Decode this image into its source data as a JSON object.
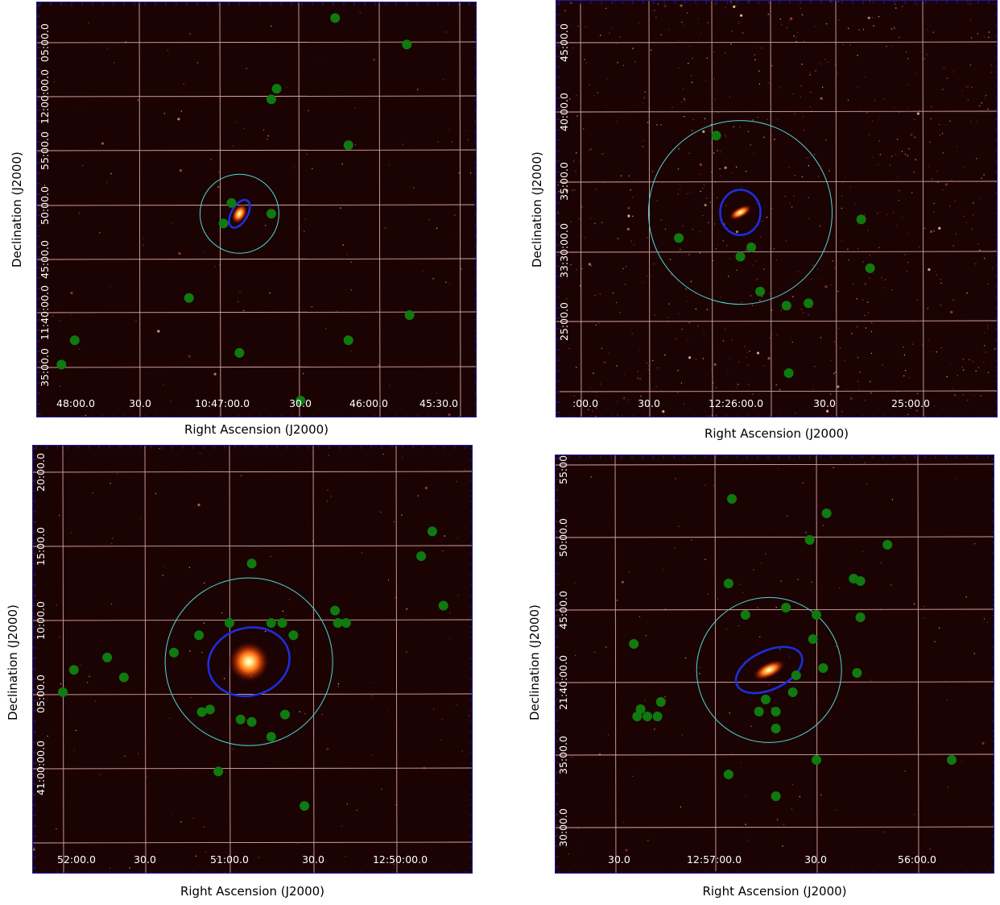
{
  "chart_data": [
    {
      "type": "scatter",
      "title": "",
      "xlabel": "Right Ascension (J2000)",
      "ylabel": "Declination (J2000)",
      "x_ticks": [
        "48:00.0",
        "30.0",
        "10:47:00.0",
        "30.0",
        "46:00.0",
        "45:30.0"
      ],
      "y_ticks": [
        "35:00.0",
        "11:40:00.0",
        "45:00.0",
        "50:00.0",
        "55:00.0",
        "12:00:00.0",
        "05:00.0"
      ],
      "grid": true,
      "colors": {
        "background": "#1c0303",
        "grid": "#d9a3a3",
        "points": "#0f7a0f",
        "ellipse": "#1a2fe0",
        "circle": "#4fd6d6",
        "frame": "#1a1aa0"
      },
      "center_ra": "10:46:52",
      "center_dec": "11:49:14",
      "points": [
        {
          "ra": "10:46:16",
          "dec": "12:07:23"
        },
        {
          "ra": "10:45:49",
          "dec": "12:04:56"
        },
        {
          "ra": "10:46:38",
          "dec": "12:00:50"
        },
        {
          "ra": "10:46:40",
          "dec": "11:59:51"
        },
        {
          "ra": "10:46:11",
          "dec": "11:55:36"
        },
        {
          "ra": "10:46:55",
          "dec": "11:50:14"
        },
        {
          "ra": "10:46:58",
          "dec": "11:48:20"
        },
        {
          "ra": "10:46:40",
          "dec": "11:49:14"
        },
        {
          "ra": "10:47:11",
          "dec": "11:41:25"
        },
        {
          "ra": "10:46:52",
          "dec": "11:36:20"
        },
        {
          "ra": "10:46:29",
          "dec": "11:31:55"
        },
        {
          "ra": "10:46:11",
          "dec": "11:37:30"
        },
        {
          "ra": "10:45:48",
          "dec": "11:39:50"
        },
        {
          "ra": "10:47:54",
          "dec": "11:37:30"
        },
        {
          "ra": "10:47:59",
          "dec": "11:35:15"
        }
      ]
    },
    {
      "type": "scatter",
      "title": "",
      "xlabel": "Right Ascension (J2000)",
      "ylabel": "Declination (J2000)",
      "x_ticks": [
        ":00.0",
        "30.0",
        "12:26:00.0",
        "30.0",
        "25:00.0"
      ],
      "y_ticks": [
        "25:00.0",
        "33:30:00.0",
        "35:00.0",
        "40:00.0",
        "45:00.0"
      ],
      "grid": true,
      "colors": {
        "background": "#1c0303",
        "grid": "#d9a3a3",
        "points": "#0f7a0f",
        "ellipse": "#1a2fe0",
        "circle": "#4fd6d6",
        "frame": "#1a1aa0"
      },
      "center_ra": "12:25:47",
      "center_dec": "33:32:50",
      "points": [
        {
          "ra": "12:25:58",
          "dec": "33:38:20"
        },
        {
          "ra": "12:26:15",
          "dec": "33:31:00"
        },
        {
          "ra": "12:25:42",
          "dec": "33:30:20"
        },
        {
          "ra": "12:25:47",
          "dec": "33:29:40"
        },
        {
          "ra": "12:25:38",
          "dec": "33:27:10"
        },
        {
          "ra": "12:25:26",
          "dec": "33:26:10"
        },
        {
          "ra": "12:25:16",
          "dec": "33:26:20"
        },
        {
          "ra": "12:25:25",
          "dec": "33:21:20"
        },
        {
          "ra": "12:24:52",
          "dec": "33:32:20"
        },
        {
          "ra": "12:24:48",
          "dec": "33:28:50"
        }
      ]
    },
    {
      "type": "scatter",
      "title": "",
      "xlabel": "Right Ascension (J2000)",
      "ylabel": "Declination (J2000)",
      "x_ticks": [
        "52:00.0",
        "30.0",
        "51:00.0",
        "30.0",
        "12:50:00.0"
      ],
      "y_ticks": [
        "41:00:00.0",
        "05:00.0",
        "10:00.0",
        "15:00.0",
        "20:00.0"
      ],
      "grid": true,
      "colors": {
        "background": "#1c0303",
        "grid": "#d9a3a3",
        "points": "#0f7a0f",
        "ellipse": "#1a2fe0",
        "circle": "#4fd6d6",
        "frame": "#1a1aa0"
      },
      "center_ra": "12:50:53",
      "center_dec": "41:07:13",
      "points": [
        {
          "ra": "12:50:52",
          "dec": "41:13:50"
        },
        {
          "ra": "12:50:45",
          "dec": "41:09:50"
        },
        {
          "ra": "12:50:41",
          "dec": "41:09:50"
        },
        {
          "ra": "12:50:37",
          "dec": "41:09:00"
        },
        {
          "ra": "12:50:22",
          "dec": "41:10:40"
        },
        {
          "ra": "12:50:21",
          "dec": "41:09:50"
        },
        {
          "ra": "12:50:18",
          "dec": "41:09:50"
        },
        {
          "ra": "12:51:00",
          "dec": "41:09:50"
        },
        {
          "ra": "12:51:11",
          "dec": "41:09:00"
        },
        {
          "ra": "12:51:20",
          "dec": "41:07:50"
        },
        {
          "ra": "12:51:07",
          "dec": "41:04:00"
        },
        {
          "ra": "12:51:10",
          "dec": "41:03:50"
        },
        {
          "ra": "12:50:56",
          "dec": "41:03:20"
        },
        {
          "ra": "12:50:52",
          "dec": "41:03:10"
        },
        {
          "ra": "12:50:40",
          "dec": "41:03:40"
        },
        {
          "ra": "12:50:45",
          "dec": "41:02:10"
        },
        {
          "ra": "12:51:04",
          "dec": "40:59:50"
        },
        {
          "ra": "12:51:38",
          "dec": "41:06:10"
        },
        {
          "ra": "12:51:44",
          "dec": "41:07:30"
        },
        {
          "ra": "12:51:56",
          "dec": "41:06:40"
        },
        {
          "ra": "12:52:00",
          "dec": "41:05:10"
        },
        {
          "ra": "12:50:33",
          "dec": "40:57:30"
        },
        {
          "ra": "12:49:51",
          "dec": "41:14:20"
        },
        {
          "ra": "12:49:47",
          "dec": "41:16:00"
        },
        {
          "ra": "12:49:43",
          "dec": "41:11:00"
        }
      ]
    },
    {
      "type": "scatter",
      "title": "",
      "xlabel": "Right Ascension (J2000)",
      "ylabel": "Declination (J2000)",
      "x_ticks": [
        "30.0",
        "12:57:00.0",
        "30.0",
        "56:00.0"
      ],
      "y_ticks": [
        "30:00.0",
        "35:00.0",
        "21:40:00.0",
        "45:00.0",
        "50:00.0",
        "55:00.0"
      ],
      "grid": true,
      "colors": {
        "background": "#1c0303",
        "grid": "#d9a3a3",
        "points": "#0f7a0f",
        "ellipse": "#1a2fe0",
        "circle": "#4fd6d6",
        "frame": "#1a1aa0"
      },
      "center_ra": "12:56:44",
      "center_dec": "21:40:52",
      "points": [
        {
          "ra": "12:56:55",
          "dec": "21:52:40"
        },
        {
          "ra": "12:56:27",
          "dec": "21:51:40"
        },
        {
          "ra": "12:56:32",
          "dec": "21:49:50"
        },
        {
          "ra": "12:56:09",
          "dec": "21:49:30"
        },
        {
          "ra": "12:56:19",
          "dec": "21:47:10"
        },
        {
          "ra": "12:56:17",
          "dec": "21:47:00"
        },
        {
          "ra": "12:56:56",
          "dec": "21:46:50"
        },
        {
          "ra": "12:56:51",
          "dec": "21:44:40"
        },
        {
          "ra": "12:56:39",
          "dec": "21:45:10"
        },
        {
          "ra": "12:56:30",
          "dec": "21:44:40"
        },
        {
          "ra": "12:56:17",
          "dec": "21:44:30"
        },
        {
          "ra": "12:56:31",
          "dec": "21:43:00"
        },
        {
          "ra": "12:56:28",
          "dec": "21:41:00"
        },
        {
          "ra": "12:56:18",
          "dec": "21:40:40"
        },
        {
          "ra": "12:56:36",
          "dec": "21:40:30"
        },
        {
          "ra": "12:56:37",
          "dec": "21:39:20"
        },
        {
          "ra": "12:56:45",
          "dec": "21:38:50"
        },
        {
          "ra": "12:56:47",
          "dec": "21:38:00"
        },
        {
          "ra": "12:56:42",
          "dec": "21:38:00"
        },
        {
          "ra": "12:56:42",
          "dec": "21:36:50"
        },
        {
          "ra": "12:56:30",
          "dec": "21:34:40"
        },
        {
          "ra": "12:57:24",
          "dec": "21:42:40"
        },
        {
          "ra": "12:57:22",
          "dec": "21:38:10"
        },
        {
          "ra": "12:57:16",
          "dec": "21:38:40"
        },
        {
          "ra": "12:57:23",
          "dec": "21:37:40"
        },
        {
          "ra": "12:57:20",
          "dec": "21:37:40"
        },
        {
          "ra": "12:57:17",
          "dec": "21:37:40"
        },
        {
          "ra": "12:56:56",
          "dec": "21:33:40"
        },
        {
          "ra": "12:56:42",
          "dec": "21:32:10"
        },
        {
          "ra": "12:55:50",
          "dec": "21:34:40"
        }
      ]
    }
  ]
}
